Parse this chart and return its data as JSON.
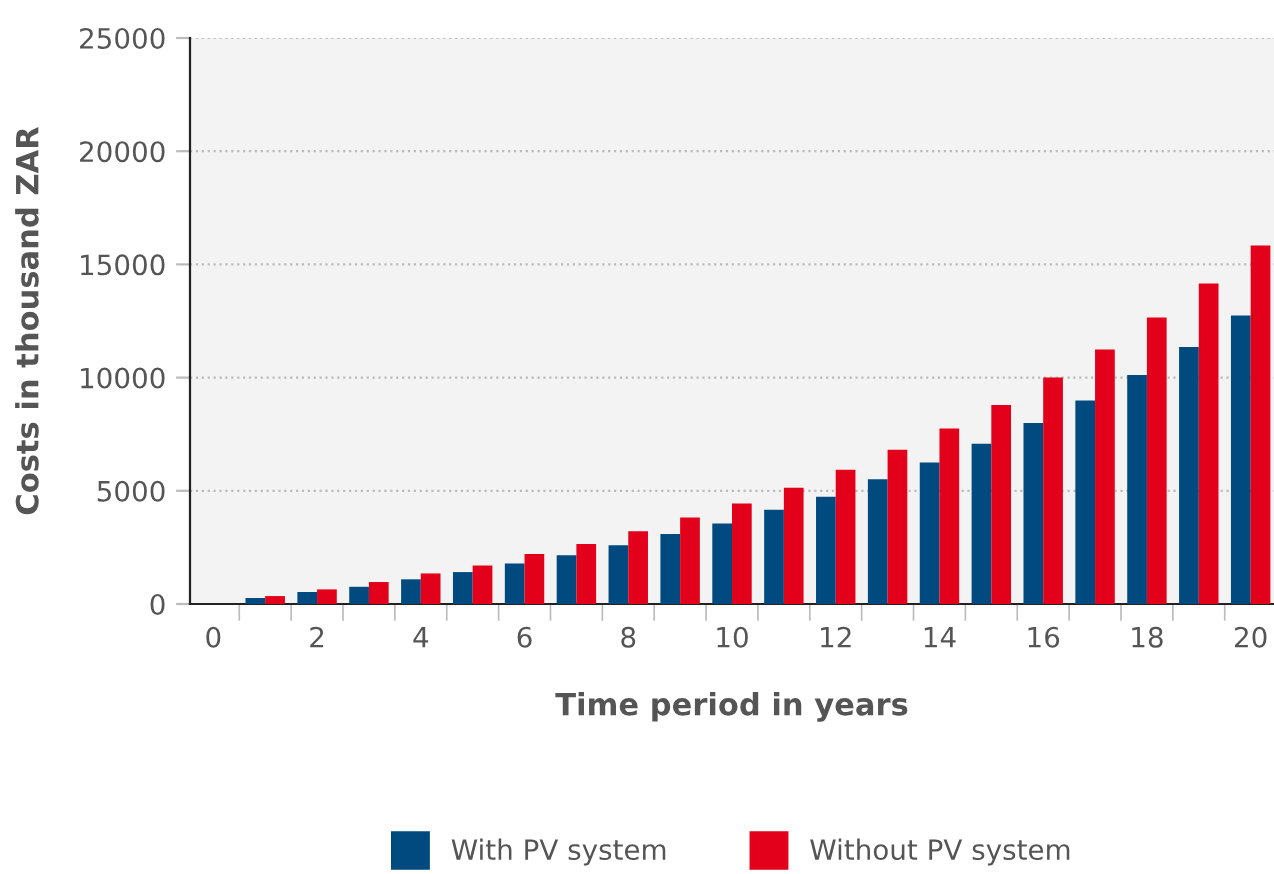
{
  "chart_data": {
    "type": "bar",
    "xlabel": "Time period in years",
    "ylabel": "Costs in thousand ZAR",
    "categories": [
      "0",
      null,
      "2",
      null,
      "4",
      null,
      "6",
      null,
      "8",
      null,
      "10",
      null,
      "12",
      null,
      "14",
      null,
      "16",
      null,
      "18",
      null,
      "20"
    ],
    "series": [
      {
        "name": "With PV system",
        "color": "#004a80",
        "values": [
          null,
          265,
          530,
          760,
          1090,
          1410,
          1790,
          2150,
          2590,
          3090,
          3560,
          4160,
          4740,
          5510,
          6250,
          7080,
          7990,
          8990,
          10120,
          11350,
          12740
        ]
      },
      {
        "name": "Without PV system",
        "color": "#e2001a",
        "values": [
          null,
          350,
          645,
          970,
          1350,
          1700,
          2210,
          2650,
          3210,
          3820,
          4440,
          5130,
          5930,
          6810,
          7750,
          8790,
          10000,
          11240,
          12650,
          14160,
          15840
        ]
      }
    ],
    "ylim": [
      0,
      25000
    ],
    "yticks": [
      0,
      5000,
      10000,
      15000,
      20000,
      25000
    ],
    "grid": "y",
    "legend": "bottom"
  }
}
